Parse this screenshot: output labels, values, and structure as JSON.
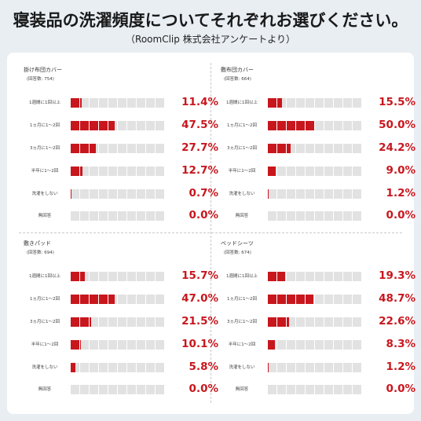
{
  "title": "寝装品の洗濯頻度についてそれぞれお選びください。",
  "subtitle": "（RoomClip 株式会社アンケートより）",
  "categories": [
    "1週間に1回以上",
    "1ヵ月に1〜2回",
    "3ヵ月に1〜2回",
    "半年に1〜2回",
    "洗濯をしない",
    "無回答"
  ],
  "chart_data": [
    {
      "type": "bar",
      "title": "掛け布団カバー",
      "note": "(回答数: 754)",
      "categories": [
        "1週間に1回以上",
        "1ヵ月に1〜2回",
        "3ヵ月に1〜2回",
        "半年に1〜2回",
        "洗濯をしない",
        "無回答"
      ],
      "values": [
        11.4,
        47.5,
        27.7,
        12.7,
        0.7,
        0.0
      ],
      "labels": [
        "11.4%",
        "47.5%",
        "27.7%",
        "12.7%",
        "0.7%",
        "0.0%"
      ],
      "ylim": [
        0,
        100
      ]
    },
    {
      "type": "bar",
      "title": "敷布団カバー",
      "note": "(回答数: 664)",
      "categories": [
        "1週間に1回以上",
        "1ヵ月に1〜2回",
        "3ヵ月に1〜2回",
        "半年に1〜2回",
        "洗濯をしない",
        "無回答"
      ],
      "values": [
        15.5,
        50.0,
        24.2,
        9.0,
        1.2,
        0.0
      ],
      "labels": [
        "15.5%",
        "50.0%",
        "24.2%",
        "9.0%",
        "1.2%",
        "0.0%"
      ],
      "ylim": [
        0,
        100
      ]
    },
    {
      "type": "bar",
      "title": "敷きパッド",
      "note": "(回答数: 694)",
      "categories": [
        "1週間に1回以上",
        "1ヵ月に1〜2回",
        "3ヵ月に1〜2回",
        "半年に1〜2回",
        "洗濯をしない",
        "無回答"
      ],
      "values": [
        15.7,
        47.0,
        21.5,
        10.1,
        5.8,
        0.0
      ],
      "labels": [
        "15.7%",
        "47.0%",
        "21.5%",
        "10.1%",
        "5.8%",
        "0.0%"
      ],
      "ylim": [
        0,
        100
      ]
    },
    {
      "type": "bar",
      "title": "ベッドシーツ",
      "note": "(回答数: 674)",
      "categories": [
        "1週間に1回以上",
        "1ヵ月に1〜2回",
        "3ヵ月に1〜2回",
        "半年に1〜2回",
        "洗濯をしない",
        "無回答"
      ],
      "values": [
        19.3,
        48.7,
        22.6,
        8.3,
        1.2,
        0.0
      ],
      "labels": [
        "19.3%",
        "48.7%",
        "22.6%",
        "8.3%",
        "1.2%",
        "0.0%"
      ],
      "ylim": [
        0,
        100
      ]
    }
  ],
  "colors": {
    "accent": "#c8161d",
    "empty": "#e2e2e2",
    "background": "#e9eef3",
    "card": "#ffffff"
  }
}
